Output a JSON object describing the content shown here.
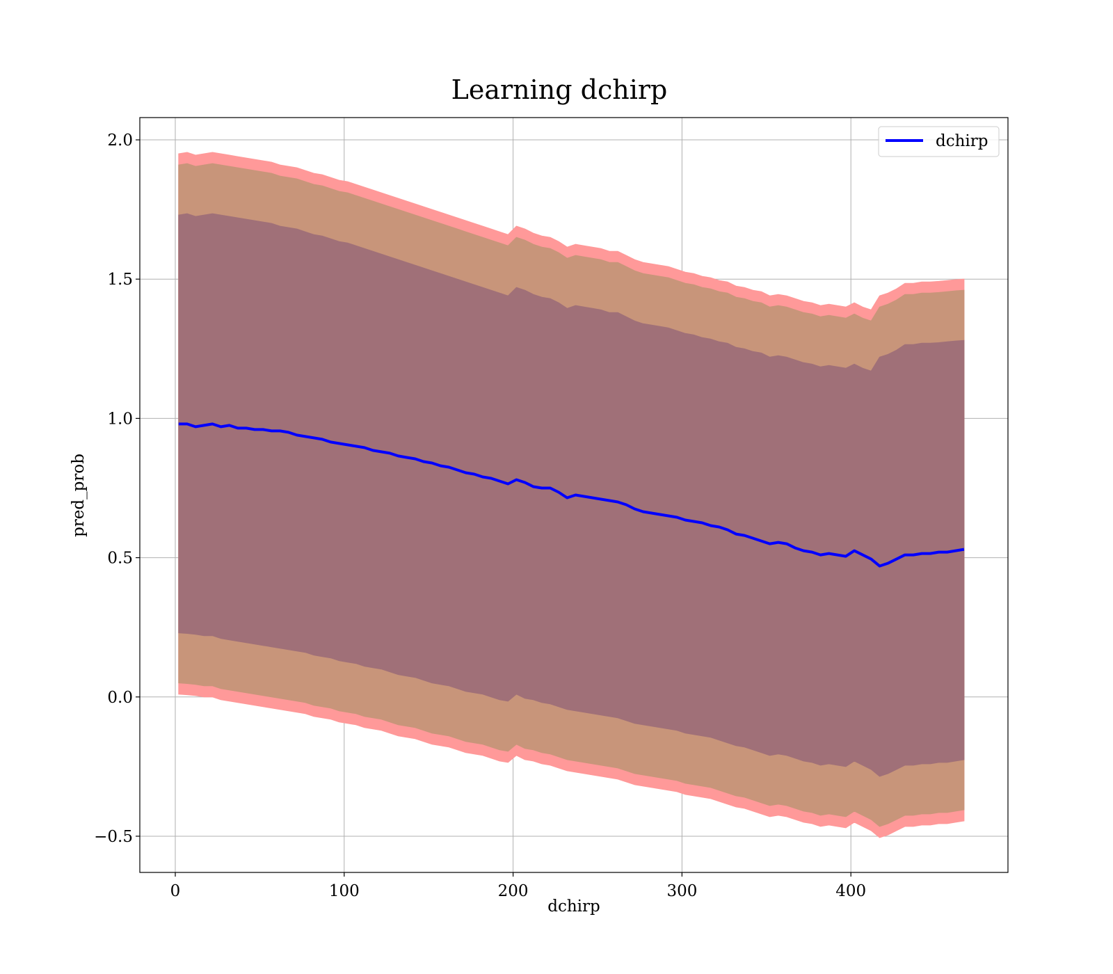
{
  "chart_data": {
    "type": "line",
    "title": "Learning dchirp",
    "xlabel": "dchirp",
    "ylabel": "pred_prob",
    "xlim": [
      -21,
      493
    ],
    "ylim": [
      -0.63,
      2.08
    ],
    "xticks": [
      0,
      100,
      200,
      300,
      400
    ],
    "yticks": [
      -0.5,
      0.0,
      0.5,
      1.0,
      1.5,
      2.0
    ],
    "xtick_labels": [
      "0",
      "100",
      "200",
      "300",
      "400"
    ],
    "ytick_labels": [
      "−0.5",
      "0.0",
      "0.5",
      "1.0",
      "1.5",
      "2.0"
    ],
    "grid": true,
    "legend": {
      "position": "top-right",
      "entries": [
        "dchirp"
      ]
    },
    "colors": {
      "line": "#0000ff",
      "band_outer": "#ff9999",
      "band_middle": "#c8957a",
      "band_inner": "#a07078"
    },
    "series": [
      {
        "name": "dchirp",
        "x": [
          2,
          7,
          12,
          17,
          22,
          27,
          32,
          37,
          42,
          47,
          52,
          57,
          62,
          67,
          72,
          77,
          82,
          87,
          92,
          97,
          102,
          107,
          112,
          117,
          122,
          127,
          132,
          137,
          142,
          147,
          152,
          157,
          162,
          167,
          172,
          177,
          182,
          187,
          192,
          197,
          202,
          207,
          212,
          217,
          222,
          227,
          232,
          237,
          242,
          247,
          252,
          257,
          262,
          267,
          272,
          277,
          282,
          287,
          292,
          297,
          302,
          307,
          312,
          317,
          322,
          327,
          332,
          337,
          342,
          347,
          352,
          357,
          362,
          367,
          372,
          377,
          382,
          387,
          392,
          397,
          402,
          407,
          412,
          417,
          422,
          427,
          432,
          437,
          442,
          447,
          452,
          457,
          462,
          467
        ],
        "y": [
          0.98,
          0.98,
          0.97,
          0.975,
          0.98,
          0.97,
          0.975,
          0.965,
          0.965,
          0.96,
          0.96,
          0.955,
          0.955,
          0.95,
          0.94,
          0.935,
          0.93,
          0.925,
          0.915,
          0.91,
          0.905,
          0.9,
          0.895,
          0.885,
          0.88,
          0.875,
          0.865,
          0.86,
          0.855,
          0.845,
          0.84,
          0.83,
          0.825,
          0.815,
          0.805,
          0.8,
          0.79,
          0.785,
          0.775,
          0.765,
          0.78,
          0.77,
          0.755,
          0.75,
          0.75,
          0.735,
          0.715,
          0.725,
          0.72,
          0.715,
          0.71,
          0.705,
          0.7,
          0.69,
          0.675,
          0.665,
          0.66,
          0.655,
          0.65,
          0.645,
          0.635,
          0.63,
          0.625,
          0.615,
          0.61,
          0.6,
          0.585,
          0.58,
          0.57,
          0.56,
          0.55,
          0.555,
          0.55,
          0.535,
          0.525,
          0.52,
          0.51,
          0.515,
          0.51,
          0.505,
          0.525,
          0.51,
          0.495,
          0.47,
          0.48,
          0.495,
          0.51,
          0.51,
          0.515,
          0.515,
          0.52,
          0.52,
          0.525,
          0.53
        ]
      }
    ],
    "bands": [
      {
        "lower": [
          0.01,
          0.008,
          0.005,
          0.0,
          0.0,
          -0.01,
          -0.015,
          -0.02,
          -0.025,
          -0.03,
          -0.035,
          -0.04,
          -0.045,
          -0.05,
          -0.055,
          -0.06,
          -0.07,
          -0.075,
          -0.08,
          -0.09,
          -0.095,
          -0.1,
          -0.11,
          -0.115,
          -0.12,
          -0.13,
          -0.14,
          -0.145,
          -0.15,
          -0.16,
          -0.17,
          -0.175,
          -0.18,
          -0.19,
          -0.2,
          -0.205,
          -0.21,
          -0.22,
          -0.23,
          -0.235,
          -0.21,
          -0.225,
          -0.23,
          -0.24,
          -0.245,
          -0.255,
          -0.265,
          -0.27,
          -0.275,
          -0.28,
          -0.285,
          -0.29,
          -0.295,
          -0.305,
          -0.315,
          -0.32,
          -0.325,
          -0.33,
          -0.335,
          -0.34,
          -0.35,
          -0.355,
          -0.36,
          -0.365,
          -0.375,
          -0.385,
          -0.395,
          -0.4,
          -0.41,
          -0.42,
          -0.43,
          -0.425,
          -0.43,
          -0.44,
          -0.45,
          -0.455,
          -0.465,
          -0.46,
          -0.465,
          -0.47,
          -0.45,
          -0.465,
          -0.48,
          -0.505,
          -0.495,
          -0.48,
          -0.465,
          -0.465,
          -0.46,
          -0.46,
          -0.455,
          -0.455,
          -0.45,
          -0.445
        ],
        "upper": [
          1.95,
          1.955,
          1.945,
          1.95,
          1.955,
          1.95,
          1.945,
          1.94,
          1.935,
          1.93,
          1.925,
          1.92,
          1.91,
          1.905,
          1.9,
          1.89,
          1.88,
          1.875,
          1.865,
          1.855,
          1.85,
          1.84,
          1.83,
          1.82,
          1.81,
          1.8,
          1.79,
          1.78,
          1.77,
          1.76,
          1.75,
          1.74,
          1.73,
          1.72,
          1.71,
          1.7,
          1.69,
          1.68,
          1.67,
          1.66,
          1.69,
          1.68,
          1.665,
          1.655,
          1.65,
          1.635,
          1.615,
          1.625,
          1.62,
          1.615,
          1.61,
          1.6,
          1.6,
          1.585,
          1.57,
          1.56,
          1.555,
          1.55,
          1.545,
          1.535,
          1.525,
          1.52,
          1.51,
          1.505,
          1.495,
          1.49,
          1.475,
          1.47,
          1.46,
          1.455,
          1.44,
          1.445,
          1.44,
          1.43,
          1.42,
          1.415,
          1.405,
          1.41,
          1.405,
          1.4,
          1.415,
          1.4,
          1.39,
          1.44,
          1.45,
          1.465,
          1.485,
          1.485,
          1.49,
          1.49,
          1.492,
          1.495,
          1.498,
          1.5
        ]
      },
      {
        "lower": [
          0.05,
          0.048,
          0.045,
          0.04,
          0.04,
          0.03,
          0.025,
          0.02,
          0.015,
          0.01,
          0.005,
          0.0,
          -0.005,
          -0.01,
          -0.015,
          -0.02,
          -0.03,
          -0.035,
          -0.04,
          -0.05,
          -0.055,
          -0.06,
          -0.07,
          -0.075,
          -0.08,
          -0.09,
          -0.1,
          -0.105,
          -0.11,
          -0.12,
          -0.13,
          -0.135,
          -0.14,
          -0.15,
          -0.16,
          -0.165,
          -0.17,
          -0.18,
          -0.19,
          -0.195,
          -0.17,
          -0.185,
          -0.19,
          -0.2,
          -0.205,
          -0.215,
          -0.225,
          -0.23,
          -0.235,
          -0.24,
          -0.245,
          -0.25,
          -0.255,
          -0.265,
          -0.275,
          -0.28,
          -0.285,
          -0.29,
          -0.295,
          -0.3,
          -0.31,
          -0.315,
          -0.32,
          -0.325,
          -0.335,
          -0.345,
          -0.355,
          -0.36,
          -0.37,
          -0.38,
          -0.39,
          -0.385,
          -0.39,
          -0.4,
          -0.41,
          -0.415,
          -0.425,
          -0.42,
          -0.425,
          -0.43,
          -0.41,
          -0.425,
          -0.44,
          -0.465,
          -0.455,
          -0.44,
          -0.425,
          -0.425,
          -0.42,
          -0.42,
          -0.415,
          -0.415,
          -0.41,
          -0.405
        ],
        "upper": [
          1.91,
          1.915,
          1.905,
          1.91,
          1.915,
          1.91,
          1.905,
          1.9,
          1.895,
          1.89,
          1.885,
          1.88,
          1.87,
          1.865,
          1.86,
          1.85,
          1.84,
          1.835,
          1.825,
          1.815,
          1.81,
          1.8,
          1.79,
          1.78,
          1.77,
          1.76,
          1.75,
          1.74,
          1.73,
          1.72,
          1.71,
          1.7,
          1.69,
          1.68,
          1.67,
          1.66,
          1.65,
          1.64,
          1.63,
          1.62,
          1.65,
          1.64,
          1.625,
          1.615,
          1.61,
          1.595,
          1.575,
          1.585,
          1.58,
          1.575,
          1.57,
          1.56,
          1.56,
          1.545,
          1.53,
          1.52,
          1.515,
          1.51,
          1.505,
          1.495,
          1.485,
          1.48,
          1.47,
          1.465,
          1.455,
          1.45,
          1.435,
          1.43,
          1.42,
          1.415,
          1.4,
          1.405,
          1.4,
          1.39,
          1.38,
          1.375,
          1.365,
          1.37,
          1.365,
          1.36,
          1.375,
          1.36,
          1.35,
          1.4,
          1.41,
          1.425,
          1.445,
          1.445,
          1.45,
          1.45,
          1.452,
          1.455,
          1.458,
          1.46
        ]
      },
      {
        "lower": [
          0.23,
          0.228,
          0.225,
          0.22,
          0.22,
          0.21,
          0.205,
          0.2,
          0.195,
          0.19,
          0.185,
          0.18,
          0.175,
          0.17,
          0.165,
          0.16,
          0.15,
          0.145,
          0.14,
          0.13,
          0.125,
          0.12,
          0.11,
          0.105,
          0.1,
          0.09,
          0.08,
          0.075,
          0.07,
          0.06,
          0.05,
          0.045,
          0.04,
          0.03,
          0.02,
          0.015,
          0.01,
          0.0,
          -0.01,
          -0.015,
          0.01,
          -0.005,
          -0.01,
          -0.02,
          -0.025,
          -0.035,
          -0.045,
          -0.05,
          -0.055,
          -0.06,
          -0.065,
          -0.07,
          -0.075,
          -0.085,
          -0.095,
          -0.1,
          -0.105,
          -0.11,
          -0.115,
          -0.12,
          -0.13,
          -0.135,
          -0.14,
          -0.145,
          -0.155,
          -0.165,
          -0.175,
          -0.18,
          -0.19,
          -0.2,
          -0.21,
          -0.205,
          -0.21,
          -0.22,
          -0.23,
          -0.235,
          -0.245,
          -0.24,
          -0.245,
          -0.25,
          -0.23,
          -0.245,
          -0.26,
          -0.285,
          -0.275,
          -0.26,
          -0.245,
          -0.245,
          -0.24,
          -0.24,
          -0.235,
          -0.235,
          -0.23,
          -0.225
        ],
        "upper": [
          1.73,
          1.735,
          1.725,
          1.73,
          1.735,
          1.73,
          1.725,
          1.72,
          1.715,
          1.71,
          1.705,
          1.7,
          1.69,
          1.685,
          1.68,
          1.67,
          1.66,
          1.655,
          1.645,
          1.635,
          1.63,
          1.62,
          1.61,
          1.6,
          1.59,
          1.58,
          1.57,
          1.56,
          1.55,
          1.54,
          1.53,
          1.52,
          1.51,
          1.5,
          1.49,
          1.48,
          1.47,
          1.46,
          1.45,
          1.44,
          1.47,
          1.46,
          1.445,
          1.435,
          1.43,
          1.415,
          1.395,
          1.405,
          1.4,
          1.395,
          1.39,
          1.38,
          1.38,
          1.365,
          1.35,
          1.34,
          1.335,
          1.33,
          1.325,
          1.315,
          1.305,
          1.3,
          1.29,
          1.285,
          1.275,
          1.27,
          1.255,
          1.25,
          1.24,
          1.235,
          1.22,
          1.225,
          1.22,
          1.21,
          1.2,
          1.195,
          1.185,
          1.19,
          1.185,
          1.18,
          1.195,
          1.18,
          1.17,
          1.22,
          1.23,
          1.245,
          1.265,
          1.265,
          1.27,
          1.27,
          1.272,
          1.275,
          1.278,
          1.28
        ]
      }
    ]
  }
}
